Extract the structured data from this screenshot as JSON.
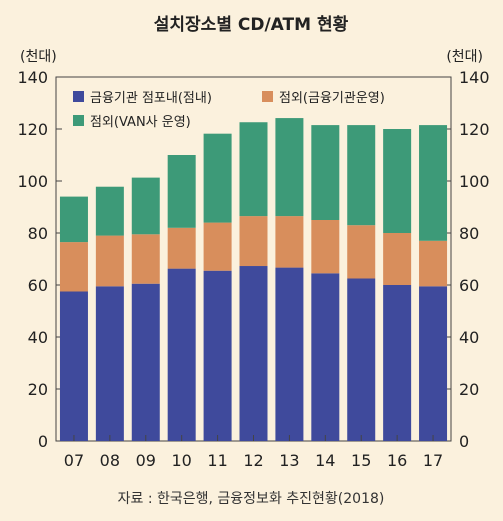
{
  "chart_data": {
    "type": "bar",
    "stacked": true,
    "title": "설치장소별 CD/ATM 현황",
    "y_unit_left": "(천대)",
    "y_unit_right": "(천대)",
    "categories": [
      "07",
      "08",
      "09",
      "10",
      "11",
      "12",
      "13",
      "14",
      "15",
      "16",
      "17"
    ],
    "ylim": [
      0,
      140
    ],
    "yticks": [
      0,
      20,
      40,
      60,
      80,
      100,
      120,
      140
    ],
    "grid": false,
    "legend_position": "top-left",
    "series": [
      {
        "name": "금융기관 점포내(점내)",
        "color": "#3f4a9c",
        "values": [
          57.5,
          59.5,
          60.5,
          66.3,
          65.5,
          67.3,
          66.7,
          64.5,
          62.5,
          60,
          59.5
        ]
      },
      {
        "name": "점외(금융기관운영)",
        "color": "#d88e5c",
        "values": [
          19,
          19.5,
          19,
          15.7,
          18.5,
          19.2,
          19.8,
          20.5,
          20.5,
          20,
          17.5
        ]
      },
      {
        "name": "점외(VAN사 운영)",
        "color": "#3d9a78",
        "values": [
          17.5,
          18.8,
          21.8,
          28,
          34.2,
          36.1,
          37.7,
          36.5,
          38.5,
          40,
          44.5
        ]
      }
    ],
    "source": "자료 : 한국은행, 금융정보화 추진현황(2018)"
  }
}
